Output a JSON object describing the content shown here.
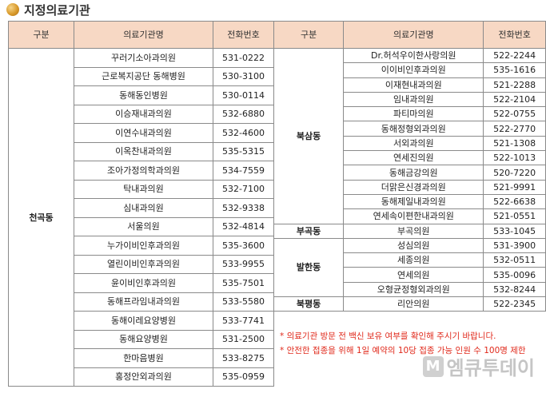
{
  "title": "지정의료기관",
  "headers": {
    "group": "구분",
    "name": "의료기관명",
    "phone": "전화번호"
  },
  "left": {
    "group": "천곡동",
    "rows": [
      {
        "name": "꾸러기소아과의원",
        "phone": "531-0222"
      },
      {
        "name": "근로복지공단 동해병원",
        "phone": "530-3100"
      },
      {
        "name": "동해동인병원",
        "phone": "530-0114"
      },
      {
        "name": "이승재내과의원",
        "phone": "532-6880"
      },
      {
        "name": "이연수내과의원",
        "phone": "532-4600"
      },
      {
        "name": "이옥찬내과의원",
        "phone": "535-5315"
      },
      {
        "name": "조아가정의학과의원",
        "phone": "534-7559"
      },
      {
        "name": "탁내과의원",
        "phone": "532-7100"
      },
      {
        "name": "심내과의원",
        "phone": "532-9338"
      },
      {
        "name": "서울의원",
        "phone": "532-4814"
      },
      {
        "name": "누가이비인후과의원",
        "phone": "535-3600"
      },
      {
        "name": "열린이비인후과의원",
        "phone": "533-9955"
      },
      {
        "name": "윤이비인후과의원",
        "phone": "535-7501"
      },
      {
        "name": "동해프라임내과의원",
        "phone": "533-5580"
      },
      {
        "name": "동해이레요양병원",
        "phone": "533-7741"
      },
      {
        "name": "동해요양병원",
        "phone": "531-2500"
      },
      {
        "name": "한마음병원",
        "phone": "533-8275"
      },
      {
        "name": "홍정안외과의원",
        "phone": "535-0959"
      }
    ]
  },
  "right": {
    "groups": [
      {
        "label": "북삼동",
        "rows": [
          {
            "name": "Dr.허석우이한사랑의원",
            "phone": "522-2244"
          },
          {
            "name": "이이비인후과의원",
            "phone": "535-1616"
          },
          {
            "name": "이재현내과의원",
            "phone": "521-2288"
          },
          {
            "name": "임내과의원",
            "phone": "522-2104"
          },
          {
            "name": "파티마의원",
            "phone": "522-0755"
          },
          {
            "name": "동해정형외과의원",
            "phone": "522-2770"
          },
          {
            "name": "서외과의원",
            "phone": "521-1308"
          },
          {
            "name": "연세진의원",
            "phone": "522-1013"
          },
          {
            "name": "동해금강의원",
            "phone": "520-7220"
          },
          {
            "name": "더맑은신경과의원",
            "phone": "521-9991"
          },
          {
            "name": "동해제일내과의원",
            "phone": "522-6638"
          },
          {
            "name": "연세속이편한내과의원",
            "phone": "521-0551"
          }
        ]
      },
      {
        "label": "부곡동",
        "rows": [
          {
            "name": "부곡의원",
            "phone": "533-1045"
          }
        ]
      },
      {
        "label": "발한동",
        "rows": [
          {
            "name": "성심의원",
            "phone": "531-3900"
          },
          {
            "name": "세종의원",
            "phone": "532-0511"
          },
          {
            "name": "연세의원",
            "phone": "535-0096"
          },
          {
            "name": "오형균정형외과의원",
            "phone": "532-8244"
          }
        ]
      },
      {
        "label": "북평동",
        "rows": [
          {
            "name": "리안의원",
            "phone": "522-2345"
          }
        ]
      }
    ]
  },
  "notes": [
    "* 의료기관 방문 전 백신 보유 여부를 확인해 주시기 바랍니다.",
    "* 안전한 접종을 위해 1일 예약의 10당 접종 가능 인원 수 100명 제한"
  ],
  "watermark": {
    "logo": "M",
    "text": "엠큐투데이"
  }
}
